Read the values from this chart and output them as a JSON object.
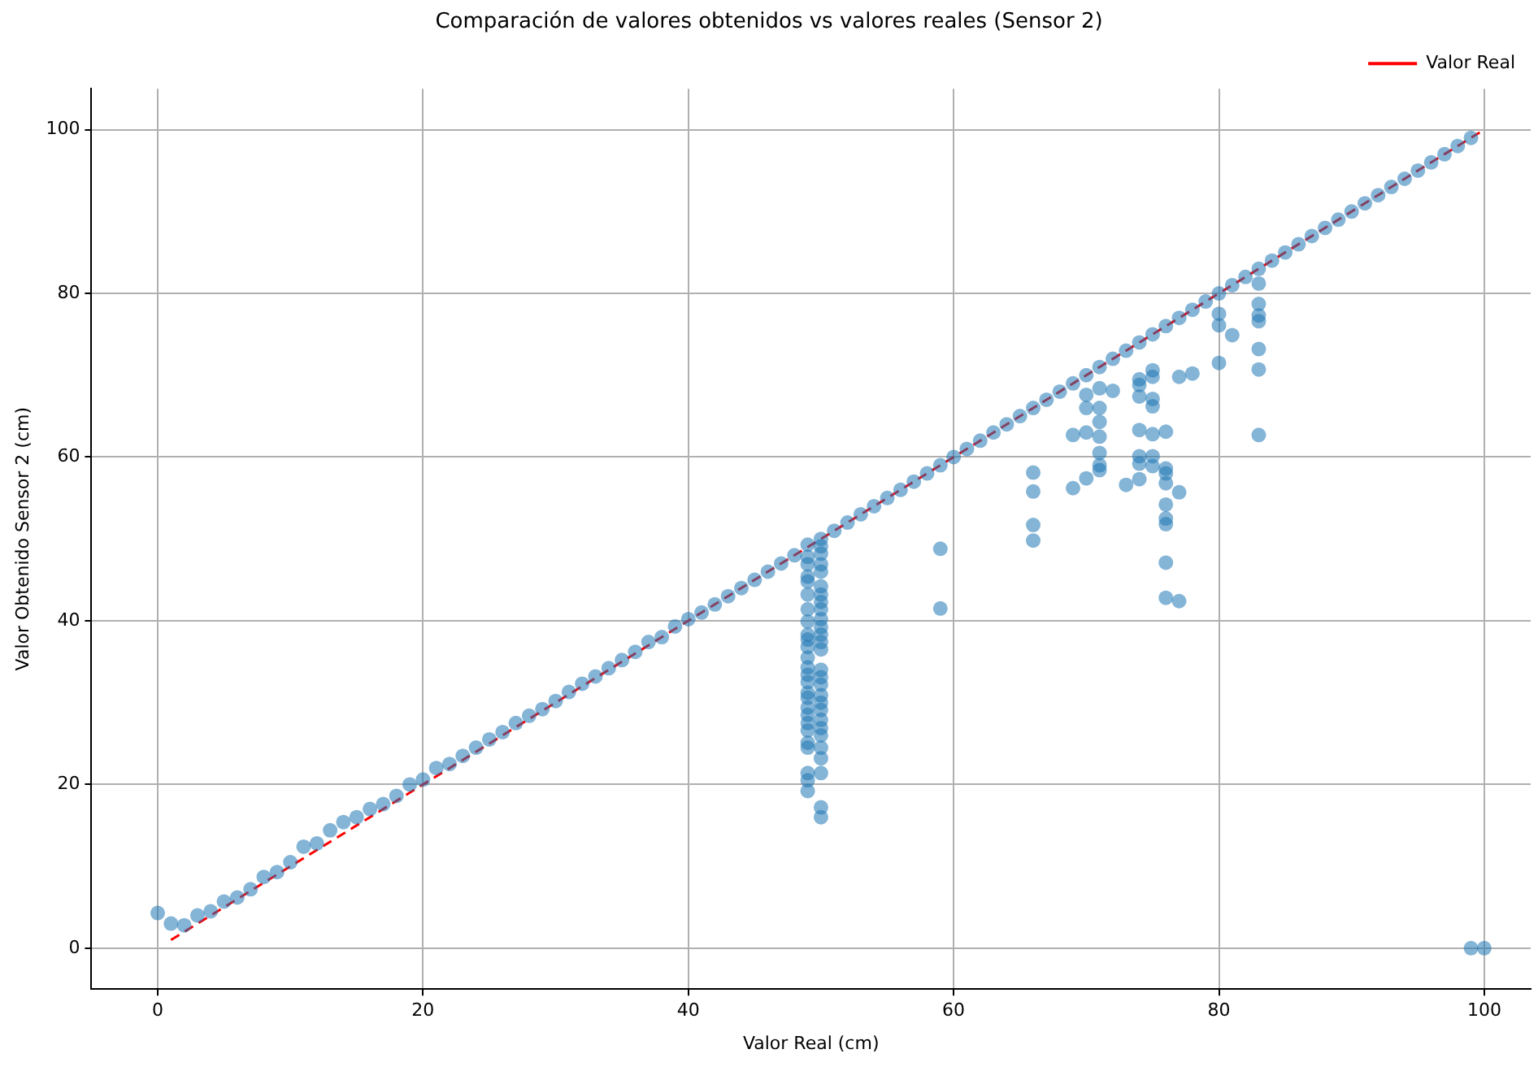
{
  "chart_data": {
    "type": "scatter",
    "title": "Comparación de valores obtenidos vs valores reales (Sensor 2)",
    "xlabel": "Valor Real (cm)",
    "ylabel": "Valor Obtenido Sensor 2 (cm)",
    "xlim": [
      -5,
      103.5
    ],
    "ylim": [
      -5,
      105
    ],
    "xticks": [
      0,
      20,
      40,
      60,
      80,
      100
    ],
    "yticks": [
      0,
      20,
      40,
      60,
      80,
      100
    ],
    "grid": true,
    "legend": "top right",
    "series": [
      {
        "color": "#1f77b4",
        "marker": "circle",
        "x": [
          0,
          1,
          2,
          3,
          4,
          5,
          6,
          7,
          8,
          9,
          10,
          11,
          12,
          13,
          14,
          15,
          16,
          17,
          18,
          19,
          20,
          21,
          22,
          23,
          24,
          25,
          26,
          27,
          28,
          29,
          30,
          31,
          32,
          33,
          34,
          35,
          36,
          37,
          38,
          39,
          40,
          41,
          42,
          43,
          44,
          45,
          46,
          47,
          48,
          49,
          50,
          51,
          52,
          53,
          54,
          55,
          56,
          57,
          58,
          59,
          60,
          61,
          62,
          63,
          64,
          65,
          66,
          67,
          68,
          69,
          70,
          71,
          72,
          73,
          74,
          75,
          76,
          77,
          78,
          79,
          80,
          81,
          82,
          83,
          84,
          85,
          86,
          87,
          88,
          89,
          90,
          91,
          92,
          93,
          94,
          95,
          96,
          97,
          98,
          99,
          99,
          100,
          49,
          49,
          49,
          49,
          49,
          49,
          49,
          49,
          49,
          49,
          49,
          49,
          49,
          49,
          49,
          49,
          49,
          49,
          49,
          49,
          49,
          49,
          49,
          49,
          49,
          50,
          50,
          50,
          50,
          50,
          50,
          50,
          50,
          50,
          50,
          50,
          50,
          50,
          50,
          50,
          50,
          50,
          50,
          50,
          50,
          50,
          50,
          50,
          50,
          50,
          50,
          50,
          59,
          59,
          66,
          66,
          66,
          66,
          69,
          69,
          70,
          70,
          70,
          70,
          71,
          71,
          71,
          71,
          71,
          71,
          71,
          72,
          73,
          74,
          74,
          74,
          74,
          74,
          74,
          74,
          75,
          75,
          75,
          75,
          75,
          75,
          75,
          76,
          76,
          76,
          76,
          76,
          76,
          76,
          76,
          76,
          77,
          77,
          77,
          78,
          80,
          80,
          80,
          81,
          83,
          83,
          83,
          83,
          83,
          83,
          83
        ],
        "values": [
          4.3,
          3,
          2.8,
          4,
          4.5,
          5.7,
          6.2,
          7.2,
          8.7,
          9.3,
          10.5,
          12.4,
          12.8,
          14.4,
          15.4,
          16,
          17,
          17.6,
          18.6,
          20,
          20.6,
          22,
          22.5,
          23.5,
          24.5,
          25.5,
          26.4,
          27.5,
          28.4,
          29.2,
          30.2,
          31.3,
          32.3,
          33.2,
          34.2,
          35.2,
          36.2,
          37.4,
          38,
          39.3,
          40.2,
          41,
          42,
          43,
          44,
          45,
          46,
          47,
          48,
          49.3,
          50,
          51,
          52,
          53,
          54,
          55,
          56,
          57,
          58,
          59,
          60,
          61,
          62,
          63,
          64,
          65,
          66,
          67,
          68,
          69,
          70,
          71,
          72,
          73,
          74,
          75,
          76,
          77,
          78,
          79,
          80,
          81,
          82,
          83,
          84,
          85,
          86,
          87,
          88,
          89,
          90,
          91,
          92,
          93,
          94,
          95,
          96,
          97,
          98,
          99,
          0,
          0,
          47.8,
          46.9,
          45.4,
          44.8,
          43.2,
          41.4,
          39.9,
          38.3,
          37.7,
          36.8,
          35.5,
          34.3,
          33.4,
          32.5,
          31.2,
          30.6,
          29.4,
          28.5,
          27.5,
          26.6,
          25.1,
          24.5,
          21.4,
          20.5,
          19.2,
          49.1,
          48.2,
          46.9,
          46,
          44.2,
          43.2,
          42.3,
          41.4,
          40.2,
          39.2,
          38.3,
          37.4,
          36.5,
          34,
          33.1,
          32.2,
          30.9,
          30,
          29.1,
          27.9,
          26.9,
          26,
          24.5,
          23.2,
          21.4,
          17.2,
          16,
          48.8,
          41.5,
          58.1,
          55.8,
          51.7,
          49.8,
          56.2,
          62.7,
          57.4,
          63,
          66,
          67.6,
          58.4,
          60.5,
          62.5,
          64.3,
          66,
          68.4,
          59,
          68.1,
          56.6,
          69.5,
          68.8,
          67.4,
          63.3,
          60.1,
          59.2,
          57.3,
          70.6,
          69.8,
          67.1,
          66.2,
          62.8,
          60.1,
          58.9,
          63.1,
          58.6,
          58,
          56.8,
          54.2,
          52.5,
          51.8,
          47.1,
          42.8,
          55.7,
          42.4,
          69.8,
          70.2,
          77.5,
          76.1,
          71.5,
          74.9,
          81.2,
          78.7,
          77.3,
          76.6,
          73.2,
          70.7,
          62.7
        ]
      },
      {
        "type": "line",
        "name": "Valor Real",
        "color": "#ff0000",
        "marker": "none",
        "line_style": "dashed",
        "x": [
          1,
          100
        ],
        "values": [
          1,
          100
        ]
      }
    ]
  }
}
